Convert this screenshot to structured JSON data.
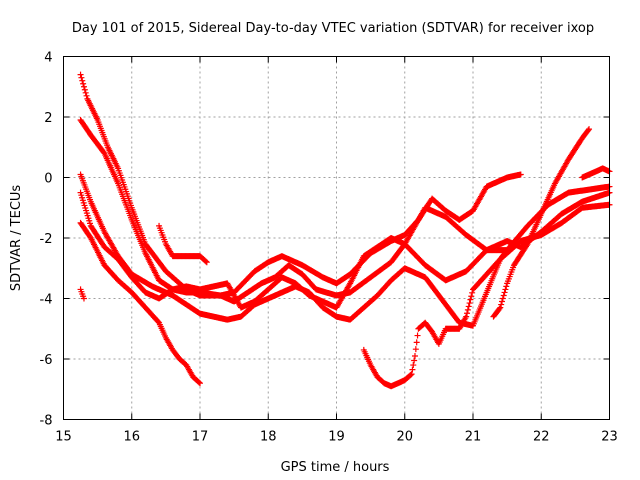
{
  "chart_data": {
    "type": "scatter",
    "title": "Day 101 of 2015, Sidereal Day-to-day VTEC variation (SDTVAR) for receiver ixop",
    "xlabel": "GPS time / hours",
    "ylabel": "SDTVAR / TECUs",
    "xlim": [
      15,
      23
    ],
    "ylim": [
      -8,
      4
    ],
    "x_ticks": [
      "15",
      "16",
      "17",
      "18",
      "19",
      "20",
      "21",
      "22",
      "23"
    ],
    "y_ticks": [
      "4",
      "2",
      "0",
      "-2",
      "-4",
      "-6",
      "-8"
    ],
    "grid": true,
    "marker": "+",
    "color": "#ff0000",
    "series": [
      {
        "name": "s1",
        "points": [
          [
            15.25,
            3.4
          ],
          [
            15.35,
            2.6
          ],
          [
            15.5,
            1.9
          ],
          [
            15.65,
            1.0
          ],
          [
            15.8,
            0.3
          ],
          [
            16.0,
            -1.0
          ],
          [
            16.2,
            -2.2
          ],
          [
            16.5,
            -3.1
          ],
          [
            16.8,
            -3.7
          ],
          [
            17.0,
            -3.9
          ],
          [
            17.3,
            -3.9
          ],
          [
            17.5,
            -3.8
          ],
          [
            17.8,
            -3.1
          ],
          [
            18.0,
            -2.8
          ],
          [
            18.2,
            -2.6
          ],
          [
            18.5,
            -2.9
          ],
          [
            18.8,
            -3.3
          ],
          [
            19.0,
            -3.5
          ],
          [
            19.2,
            -3.2
          ],
          [
            19.5,
            -2.5
          ],
          [
            19.8,
            -2.1
          ],
          [
            20.0,
            -1.9
          ],
          [
            20.2,
            -1.4
          ],
          [
            20.4,
            -0.7
          ],
          [
            20.6,
            -1.1
          ],
          [
            20.8,
            -1.4
          ],
          [
            21.0,
            -1.1
          ],
          [
            21.2,
            -0.3
          ],
          [
            21.5,
            0.0
          ],
          [
            21.7,
            0.1
          ]
        ]
      },
      {
        "name": "s2",
        "points": [
          [
            15.25,
            1.9
          ],
          [
            15.4,
            1.4
          ],
          [
            15.6,
            0.8
          ],
          [
            15.8,
            -0.2
          ],
          [
            16.0,
            -1.4
          ],
          [
            16.2,
            -2.5
          ],
          [
            16.4,
            -3.4
          ],
          [
            16.6,
            -3.7
          ],
          [
            16.8,
            -3.8
          ],
          [
            17.0,
            -3.8
          ],
          [
            17.3,
            -3.9
          ],
          [
            17.5,
            -4.1
          ],
          [
            17.7,
            -3.8
          ],
          [
            17.9,
            -3.5
          ],
          [
            18.1,
            -3.3
          ],
          [
            18.3,
            -2.9
          ],
          [
            18.5,
            -3.2
          ],
          [
            18.7,
            -3.7
          ],
          [
            19.0,
            -3.9
          ],
          [
            19.2,
            -3.8
          ],
          [
            19.5,
            -3.3
          ],
          [
            19.8,
            -2.8
          ],
          [
            20.0,
            -2.2
          ],
          [
            20.3,
            -1.0
          ],
          [
            20.6,
            -1.3
          ],
          [
            20.9,
            -1.9
          ],
          [
            21.2,
            -2.4
          ],
          [
            21.5,
            -2.4
          ],
          [
            21.8,
            -1.6
          ],
          [
            22.1,
            -0.9
          ],
          [
            22.4,
            -0.5
          ],
          [
            22.7,
            -0.4
          ],
          [
            23.0,
            -0.3
          ]
        ]
      },
      {
        "name": "s3",
        "points": [
          [
            15.25,
            0.1
          ],
          [
            15.4,
            -0.8
          ],
          [
            15.6,
            -1.8
          ],
          [
            15.8,
            -2.6
          ],
          [
            16.0,
            -3.2
          ],
          [
            16.3,
            -3.6
          ],
          [
            16.6,
            -3.9
          ],
          [
            16.8,
            -4.2
          ],
          [
            17.0,
            -4.5
          ],
          [
            17.2,
            -4.6
          ],
          [
            17.4,
            -4.7
          ],
          [
            17.6,
            -4.6
          ],
          [
            17.8,
            -4.2
          ],
          [
            18.0,
            -4.0
          ],
          [
            18.2,
            -3.8
          ],
          [
            18.4,
            -3.6
          ],
          [
            18.6,
            -3.8
          ],
          [
            18.8,
            -4.3
          ],
          [
            19.0,
            -4.6
          ],
          [
            19.2,
            -4.7
          ],
          [
            19.4,
            -4.3
          ],
          [
            19.6,
            -3.9
          ],
          [
            19.8,
            -3.4
          ],
          [
            20.0,
            -3.0
          ],
          [
            20.3,
            -3.3
          ],
          [
            20.6,
            -4.2
          ],
          [
            20.8,
            -4.8
          ],
          [
            21.0,
            -4.9
          ],
          [
            21.2,
            -3.8
          ],
          [
            21.4,
            -2.7
          ],
          [
            21.7,
            -2.1
          ],
          [
            22.0,
            -1.9
          ],
          [
            22.3,
            -1.5
          ],
          [
            22.6,
            -1.0
          ],
          [
            23.0,
            -0.9
          ]
        ]
      },
      {
        "name": "s4",
        "points": [
          [
            15.25,
            -0.5
          ],
          [
            15.4,
            -1.6
          ],
          [
            15.6,
            -2.3
          ],
          [
            15.8,
            -2.7
          ],
          [
            16.0,
            -3.3
          ],
          [
            16.2,
            -3.8
          ],
          [
            16.4,
            -4.0
          ],
          [
            16.6,
            -3.7
          ],
          [
            16.8,
            -3.6
          ],
          [
            17.0,
            -3.7
          ],
          [
            17.2,
            -3.6
          ],
          [
            17.4,
            -3.5
          ],
          [
            17.6,
            -4.3
          ],
          [
            17.8,
            -4.1
          ],
          [
            18.0,
            -3.7
          ],
          [
            18.2,
            -3.3
          ],
          [
            18.4,
            -3.5
          ],
          [
            18.6,
            -3.9
          ],
          [
            18.8,
            -4.1
          ],
          [
            19.0,
            -4.3
          ],
          [
            19.2,
            -3.5
          ],
          [
            19.4,
            -2.6
          ],
          [
            19.6,
            -2.3
          ],
          [
            19.8,
            -2.0
          ],
          [
            20.0,
            -2.2
          ],
          [
            20.3,
            -2.9
          ],
          [
            20.6,
            -3.4
          ],
          [
            20.9,
            -3.1
          ],
          [
            21.2,
            -2.4
          ],
          [
            21.5,
            -2.1
          ],
          [
            21.7,
            -2.3
          ],
          [
            22.0,
            -1.8
          ],
          [
            22.3,
            -1.2
          ],
          [
            22.6,
            -0.8
          ],
          [
            23.0,
            -0.5
          ]
        ]
      },
      {
        "name": "s5",
        "points": [
          [
            15.25,
            -1.5
          ],
          [
            15.4,
            -2.0
          ],
          [
            15.6,
            -2.9
          ],
          [
            15.8,
            -3.4
          ],
          [
            16.0,
            -3.8
          ],
          [
            16.2,
            -4.3
          ],
          [
            16.4,
            -4.8
          ],
          [
            16.5,
            -5.3
          ],
          [
            16.6,
            -5.7
          ],
          [
            16.7,
            -6.0
          ],
          [
            16.8,
            -6.2
          ],
          [
            16.9,
            -6.6
          ],
          [
            17.0,
            -6.8
          ]
        ]
      },
      {
        "name": "s6",
        "points": [
          [
            15.25,
            -3.7
          ],
          [
            15.3,
            -4.0
          ]
        ]
      },
      {
        "name": "s7",
        "points": [
          [
            19.4,
            -5.7
          ],
          [
            19.5,
            -6.2
          ],
          [
            19.6,
            -6.6
          ],
          [
            19.7,
            -6.8
          ],
          [
            19.8,
            -6.9
          ],
          [
            19.9,
            -6.8
          ],
          [
            20.0,
            -6.7
          ],
          [
            20.1,
            -6.5
          ],
          [
            20.15,
            -5.9
          ],
          [
            20.2,
            -5.0
          ],
          [
            20.3,
            -4.8
          ],
          [
            20.4,
            -5.1
          ],
          [
            20.5,
            -5.5
          ],
          [
            20.6,
            -5.0
          ],
          [
            20.8,
            -5.0
          ],
          [
            20.9,
            -4.6
          ],
          [
            21.0,
            -3.7
          ],
          [
            21.2,
            -3.2
          ],
          [
            21.4,
            -2.7
          ],
          [
            21.5,
            -2.4
          ]
        ]
      },
      {
        "name": "s8",
        "points": [
          [
            21.3,
            -4.6
          ],
          [
            21.4,
            -4.3
          ],
          [
            21.5,
            -3.5
          ],
          [
            21.6,
            -2.9
          ],
          [
            21.8,
            -2.2
          ],
          [
            22.0,
            -1.2
          ],
          [
            22.2,
            -0.2
          ],
          [
            22.4,
            0.6
          ],
          [
            22.6,
            1.3
          ],
          [
            22.7,
            1.6
          ]
        ]
      },
      {
        "name": "s9",
        "points": [
          [
            22.6,
            0.0
          ],
          [
            22.7,
            0.1
          ],
          [
            22.8,
            0.2
          ],
          [
            22.9,
            0.3
          ],
          [
            23.0,
            0.2
          ]
        ]
      },
      {
        "name": "s10",
        "points": [
          [
            16.4,
            -1.6
          ],
          [
            16.5,
            -2.2
          ],
          [
            16.6,
            -2.6
          ],
          [
            16.8,
            -2.6
          ],
          [
            17.0,
            -2.6
          ],
          [
            17.1,
            -2.8
          ]
        ]
      }
    ]
  }
}
